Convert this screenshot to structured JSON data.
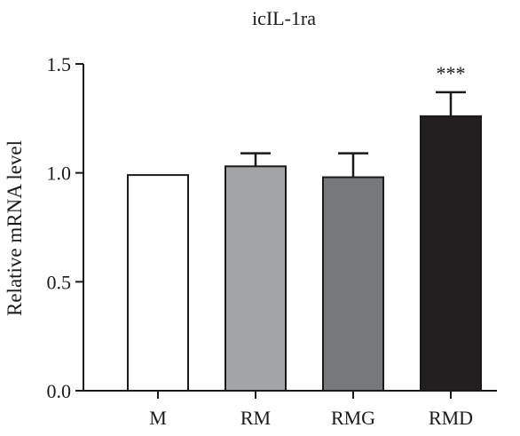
{
  "chart_data": {
    "type": "bar",
    "title": "icIL-1ra",
    "xlabel": "",
    "ylabel": "Relative mRNA level",
    "ylim": [
      0,
      1.5
    ],
    "yticks": [
      "0.0",
      "0.5",
      "1.0",
      "1.5"
    ],
    "categories": [
      "M",
      "RM",
      "RMG",
      "RMD"
    ],
    "values": [
      0.99,
      1.03,
      0.98,
      1.26
    ],
    "errors": [
      0,
      0.06,
      0.11,
      0.11
    ],
    "colors": [
      "#ffffff",
      "#a3a4a6",
      "#77787b",
      "#231f20"
    ],
    "annotations": [
      "",
      "",
      "",
      "***"
    ],
    "grid": false
  }
}
